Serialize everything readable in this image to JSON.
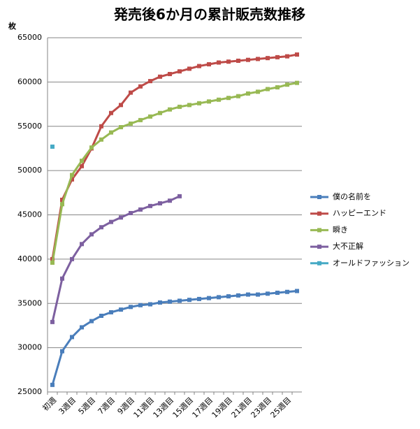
{
  "chart_data": {
    "type": "line",
    "title": "発売後6か月の累計販売数推移",
    "y_label": "枚",
    "categories": [
      "初週",
      null,
      "3週目",
      null,
      "5週目",
      null,
      "7週目",
      null,
      "9週目",
      null,
      "11週目",
      null,
      "13週目",
      null,
      "15週目",
      null,
      "17週目",
      null,
      "19週目",
      null,
      "21週目",
      null,
      "23週目",
      null,
      "25週目",
      null
    ],
    "ylim": [
      25000,
      65000
    ],
    "yticks": [
      25000,
      30000,
      35000,
      40000,
      45000,
      50000,
      55000,
      60000,
      65000
    ],
    "grid": true,
    "legend": "right",
    "series": [
      {
        "name": "僕の名前を",
        "color": "#4a7ebb",
        "values": [
          25800,
          29600,
          31200,
          32300,
          33000,
          33600,
          34000,
          34300,
          34600,
          34800,
          34900,
          35100,
          35200,
          35300,
          35400,
          35500,
          35600,
          35700,
          35800,
          35900,
          36000,
          36000,
          36100,
          36200,
          36300,
          36400
        ]
      },
      {
        "name": "ハッピーエンド",
        "color": "#be4b48",
        "values": [
          40000,
          46700,
          49000,
          50500,
          52500,
          55000,
          56500,
          57400,
          58800,
          59500,
          60100,
          60600,
          60900,
          61200,
          61500,
          61800,
          62000,
          62200,
          62300,
          62400,
          62500,
          62600,
          62700,
          62800,
          62900,
          63100
        ]
      },
      {
        "name": "瞬き",
        "color": "#98b954",
        "values": [
          39600,
          46200,
          49500,
          51100,
          52600,
          53500,
          54300,
          54900,
          55300,
          55700,
          56100,
          56500,
          56900,
          57200,
          57400,
          57600,
          57800,
          58000,
          58200,
          58400,
          58700,
          58900,
          59200,
          59400,
          59700,
          59900
        ]
      },
      {
        "name": "大不正解",
        "color": "#7d60a0",
        "values": [
          32900,
          37800,
          40000,
          41700,
          42800,
          43600,
          44200,
          44700,
          45200,
          45600,
          46000,
          46300,
          46600,
          47100,
          null,
          null,
          null,
          null,
          null,
          null,
          null,
          null,
          null,
          null,
          null,
          null
        ]
      },
      {
        "name": "オールドファッション",
        "color": "#46aac5",
        "values": [
          52700,
          null,
          null,
          null,
          null,
          null,
          null,
          null,
          null,
          null,
          null,
          null,
          null,
          null,
          null,
          null,
          null,
          null,
          null,
          null,
          null,
          null,
          null,
          null,
          null,
          null
        ]
      }
    ]
  }
}
